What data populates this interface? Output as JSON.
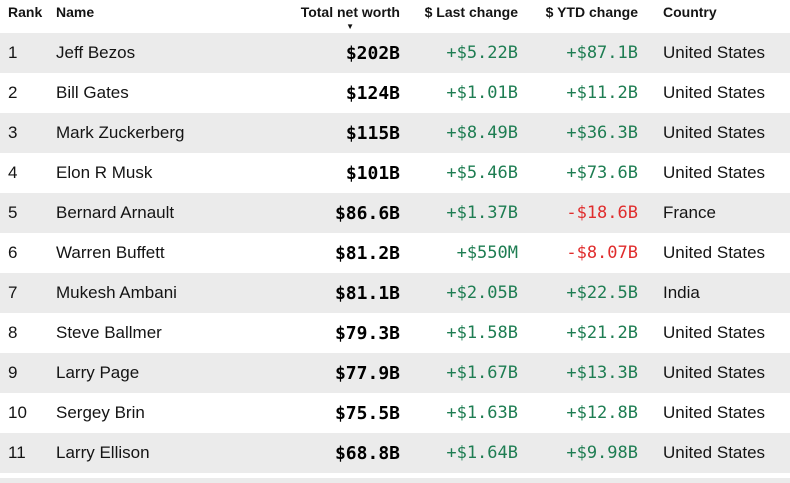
{
  "table": {
    "columns": [
      {
        "label": "Rank",
        "align": "left"
      },
      {
        "label": "Name",
        "align": "left"
      },
      {
        "label": "Total net worth",
        "align": "right",
        "sort": "desc"
      },
      {
        "label": "$ Last change",
        "align": "right"
      },
      {
        "label": "$ YTD change",
        "align": "right"
      },
      {
        "label": "Country",
        "align": "left"
      }
    ],
    "sort_indicator": {
      "column": "Total net worth",
      "direction": "desc",
      "icon": "▼"
    },
    "rows": [
      {
        "rank": "1",
        "name": "Jeff Bezos",
        "net_worth": "$202B",
        "last_change": "+$5.22B",
        "ytd_change": "+$87.1B",
        "country": "United States"
      },
      {
        "rank": "2",
        "name": "Bill Gates",
        "net_worth": "$124B",
        "last_change": "+$1.01B",
        "ytd_change": "+$11.2B",
        "country": "United States"
      },
      {
        "rank": "3",
        "name": "Mark Zuckerberg",
        "net_worth": "$115B",
        "last_change": "+$8.49B",
        "ytd_change": "+$36.3B",
        "country": "United States"
      },
      {
        "rank": "4",
        "name": "Elon R Musk",
        "net_worth": "$101B",
        "last_change": "+$5.46B",
        "ytd_change": "+$73.6B",
        "country": "United States"
      },
      {
        "rank": "5",
        "name": "Bernard Arnault",
        "net_worth": "$86.6B",
        "last_change": "+$1.37B",
        "ytd_change": "-$18.6B",
        "country": "France"
      },
      {
        "rank": "6",
        "name": "Warren Buffett",
        "net_worth": "$81.2B",
        "last_change": "+$550M",
        "ytd_change": "-$8.07B",
        "country": "United States"
      },
      {
        "rank": "7",
        "name": "Mukesh Ambani",
        "net_worth": "$81.1B",
        "last_change": "+$2.05B",
        "ytd_change": "+$22.5B",
        "country": "India"
      },
      {
        "rank": "8",
        "name": "Steve Ballmer",
        "net_worth": "$79.3B",
        "last_change": "+$1.58B",
        "ytd_change": "+$21.2B",
        "country": "United States"
      },
      {
        "rank": "9",
        "name": "Larry Page",
        "net_worth": "$77.9B",
        "last_change": "+$1.67B",
        "ytd_change": "+$13.3B",
        "country": "United States"
      },
      {
        "rank": "10",
        "name": "Sergey Brin",
        "net_worth": "$75.5B",
        "last_change": "+$1.63B",
        "ytd_change": "+$12.8B",
        "country": "United States"
      },
      {
        "rank": "11",
        "name": "Larry Ellison",
        "net_worth": "$68.8B",
        "last_change": "+$1.64B",
        "ytd_change": "+$9.98B",
        "country": "United States"
      }
    ]
  },
  "colors": {
    "positive_change": "#1e7d52",
    "negative_change": "#e02d2d",
    "row_alt_background": "#ebebeb",
    "text": "#141414"
  }
}
